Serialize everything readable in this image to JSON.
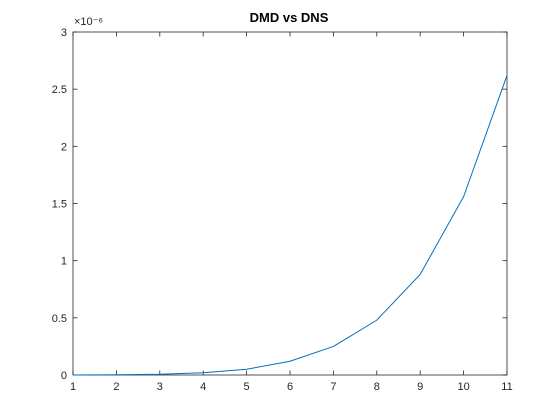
{
  "chart_data": {
    "type": "line",
    "title": "DMD vs DNS",
    "xlabel": "",
    "ylabel": "",
    "xlim": [
      1,
      11
    ],
    "ylim": [
      0,
      3
    ],
    "y_exponent_label": "×10⁻⁶",
    "x_ticks": [
      1,
      2,
      3,
      4,
      5,
      6,
      7,
      8,
      9,
      10,
      11
    ],
    "x_tick_labels": [
      "1",
      "2",
      "3",
      "4",
      "5",
      "6",
      "7",
      "8",
      "9",
      "10",
      "11"
    ],
    "y_ticks": [
      0,
      0.5,
      1,
      1.5,
      2,
      2.5,
      3
    ],
    "y_tick_labels": [
      "0",
      "0.5",
      "1",
      "1.5",
      "2",
      "2.5",
      "3"
    ],
    "grid": false,
    "box": true,
    "series": [
      {
        "color": "#0072bd",
        "x": [
          1,
          2,
          3,
          4,
          5,
          6,
          7,
          8,
          9,
          10,
          11
        ],
        "y": [
          0.0,
          0.002,
          0.006,
          0.02,
          0.05,
          0.12,
          0.25,
          0.48,
          0.88,
          1.56,
          2.62
        ]
      }
    ]
  }
}
